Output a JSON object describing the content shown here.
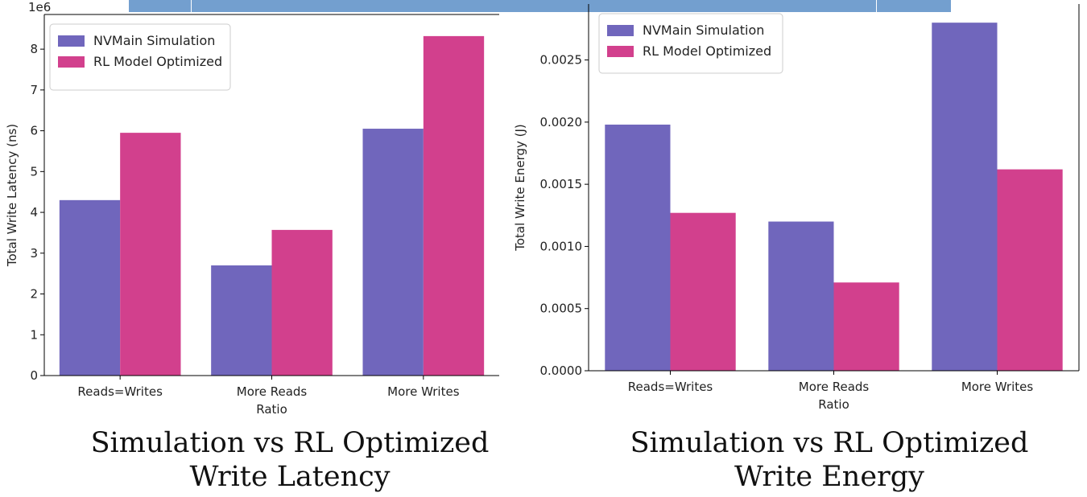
{
  "banner": {
    "color": "#739fcf"
  },
  "series_colors": [
    "#7066bc",
    "#d2408d"
  ],
  "chart_data": [
    {
      "type": "bar",
      "categories": [
        "Reads=Writes",
        "More Reads",
        "More Writes"
      ],
      "series": [
        {
          "name": "NVMain Simulation",
          "values": [
            4.3,
            2.7,
            6.05
          ]
        },
        {
          "name": "RL Model Optimized",
          "values": [
            5.95,
            3.57,
            8.32
          ]
        }
      ],
      "xlabel": "Ratio",
      "ylabel": "Total Write Latency (ns)",
      "y_offset_label": "1e6",
      "ylim": [
        0,
        8.85
      ],
      "yticks": [
        0,
        1,
        2,
        3,
        4,
        5,
        6,
        7,
        8
      ],
      "ytick_labels": [
        "0",
        "1",
        "2",
        "3",
        "4",
        "5",
        "6",
        "7",
        "8"
      ],
      "legend": "top-left",
      "grid": false,
      "caption": [
        "Simulation vs RL Optimized",
        "Write Latency"
      ]
    },
    {
      "type": "bar",
      "categories": [
        "Reads=Writes",
        "More Reads",
        "More Writes"
      ],
      "series": [
        {
          "name": "NVMain Simulation",
          "values": [
            0.00198,
            0.0012,
            0.0028
          ]
        },
        {
          "name": "RL Model Optimized",
          "values": [
            0.00127,
            0.00071,
            0.00162
          ]
        }
      ],
      "xlabel": "Ratio",
      "ylabel": "Total Write Energy (J)",
      "ylim": [
        0,
        0.00295
      ],
      "yticks": [
        0,
        0.0005,
        0.001,
        0.0015,
        0.002,
        0.0025
      ],
      "ytick_labels": [
        "0.0000",
        "0.0005",
        "0.0010",
        "0.0015",
        "0.0020",
        "0.0025"
      ],
      "legend": "top-left",
      "grid": false,
      "caption": [
        "Simulation vs RL Optimized",
        "Write Energy"
      ]
    }
  ]
}
